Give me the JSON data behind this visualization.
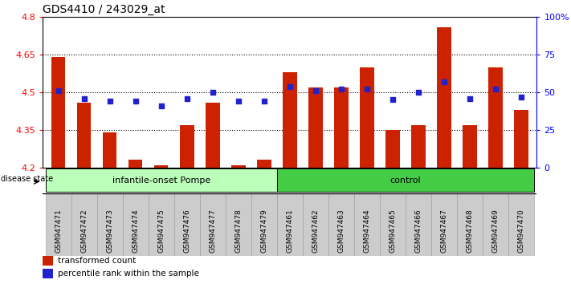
{
  "title": "GDS4410 / 243029_at",
  "samples": [
    "GSM947471",
    "GSM947472",
    "GSM947473",
    "GSM947474",
    "GSM947475",
    "GSM947476",
    "GSM947477",
    "GSM947478",
    "GSM947479",
    "GSM947461",
    "GSM947462",
    "GSM947463",
    "GSM947464",
    "GSM947465",
    "GSM947466",
    "GSM947467",
    "GSM947468",
    "GSM947469",
    "GSM947470"
  ],
  "transformed_count": [
    4.64,
    4.46,
    4.34,
    4.23,
    4.21,
    4.37,
    4.46,
    4.21,
    4.23,
    4.58,
    4.52,
    4.52,
    4.6,
    4.35,
    4.37,
    4.76,
    4.37,
    4.6,
    4.43
  ],
  "percentile_rank": [
    51,
    46,
    44,
    44,
    41,
    46,
    50,
    44,
    44,
    54,
    51,
    52,
    52,
    45,
    50,
    57,
    46,
    52,
    47
  ],
  "y_min": 4.2,
  "y_max": 4.8,
  "y_ticks": [
    4.2,
    4.35,
    4.5,
    4.65,
    4.8
  ],
  "y_ticks_labels": [
    "4.2",
    "4.35",
    "4.5",
    "4.65",
    "4.8"
  ],
  "right_y_ticks": [
    0,
    25,
    50,
    75,
    100
  ],
  "right_y_labels": [
    "0",
    "25",
    "50",
    "75",
    "100%"
  ],
  "dotted_lines": [
    4.35,
    4.5,
    4.65
  ],
  "group1_label": "infantile-onset Pompe",
  "group2_label": "control",
  "group1_count": 9,
  "group2_count": 10,
  "bar_color": "#cc2200",
  "dot_color": "#2222cc",
  "group1_bg": "#bbffbb",
  "group2_bg": "#44cc44",
  "tick_area_bg": "#cccccc",
  "disease_state_label": "disease state",
  "legend_bar_label": "transformed count",
  "legend_dot_label": "percentile rank within the sample",
  "title_fontsize": 10,
  "tick_fontsize": 6.5,
  "axis_fontsize": 8
}
